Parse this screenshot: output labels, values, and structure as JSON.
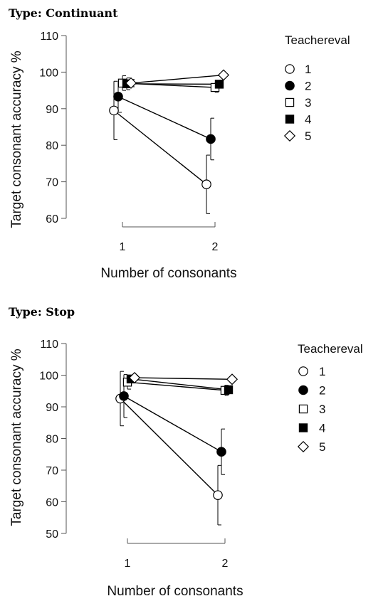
{
  "chart_data": [
    {
      "type": "line",
      "title": "Type: Continuant",
      "xlabel": "Number of consonants",
      "ylabel": "Target consonant accuracy %",
      "x_categories": [
        "1",
        "2"
      ],
      "ylim": [
        60,
        110
      ],
      "yticks": [
        60,
        70,
        80,
        90,
        100,
        110
      ],
      "legend_title": "Teachereval",
      "legend_position": "right",
      "series": [
        {
          "name": "1",
          "marker": "circle-open",
          "values": [
            89.5,
            69.3
          ],
          "err_low": [
            81.5,
            61.3
          ],
          "err_high": [
            97.5,
            77.3
          ]
        },
        {
          "name": "2",
          "marker": "circle-filled",
          "values": [
            93.3,
            81.7
          ],
          "err_low": [
            89.0,
            76.0
          ],
          "err_high": [
            97.6,
            87.4
          ]
        },
        {
          "name": "3",
          "marker": "square-open",
          "values": [
            97.0,
            95.8
          ],
          "err_low": [
            95.0,
            94.5
          ],
          "err_high": [
            99.0,
            97.1
          ]
        },
        {
          "name": "4",
          "marker": "square-filled",
          "values": [
            96.8,
            96.7
          ],
          "err_low": [
            95.2,
            95.6
          ],
          "err_high": [
            98.4,
            97.8
          ]
        },
        {
          "name": "5",
          "marker": "diamond-open",
          "values": [
            97.0,
            99.2
          ],
          "err_low": [
            96.0,
            98.7
          ],
          "err_high": [
            98.0,
            99.7
          ]
        }
      ]
    },
    {
      "type": "line",
      "title": "Type: Stop",
      "xlabel": "Number of consonants",
      "ylabel": "Target consonant accuracy %",
      "x_categories": [
        "1",
        "2"
      ],
      "ylim": [
        50,
        110
      ],
      "yticks": [
        50,
        60,
        70,
        80,
        90,
        100,
        110
      ],
      "legend_title": "Teachereval",
      "legend_position": "right",
      "series": [
        {
          "name": "1",
          "marker": "circle-open",
          "values": [
            92.6,
            62.1
          ],
          "err_low": [
            84.0,
            52.7
          ],
          "err_high": [
            101.2,
            71.5
          ]
        },
        {
          "name": "2",
          "marker": "circle-filled",
          "values": [
            93.4,
            75.8
          ],
          "err_low": [
            86.6,
            68.6
          ],
          "err_high": [
            100.2,
            83.0
          ]
        },
        {
          "name": "3",
          "marker": "square-open",
          "values": [
            97.8,
            95.2
          ],
          "err_low": [
            95.6,
            93.6
          ],
          "err_high": [
            100.0,
            96.8
          ]
        },
        {
          "name": "4",
          "marker": "square-filled",
          "values": [
            98.8,
            95.4
          ],
          "err_low": [
            97.6,
            94.2
          ],
          "err_high": [
            100.0,
            96.6
          ]
        },
        {
          "name": "5",
          "marker": "diamond-open",
          "values": [
            99.2,
            98.7
          ],
          "err_low": [
            98.4,
            98.2
          ],
          "err_high": [
            100.0,
            99.2
          ]
        }
      ]
    }
  ]
}
